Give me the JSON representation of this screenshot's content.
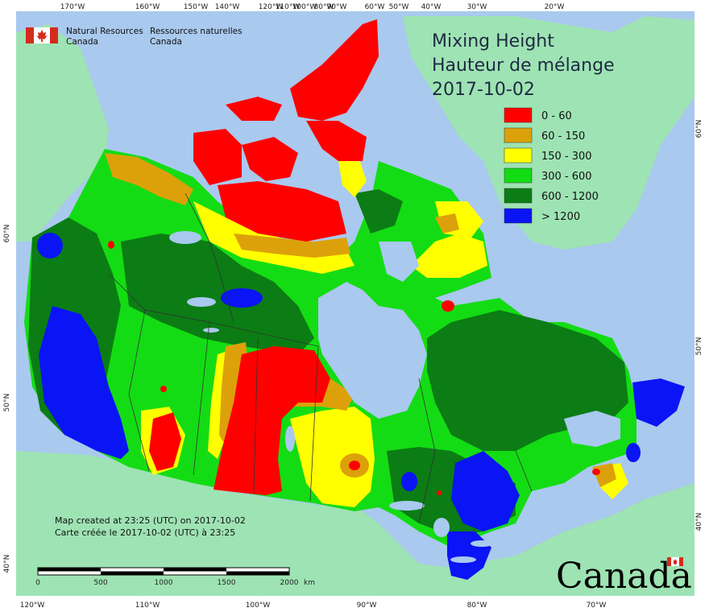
{
  "map": {
    "title_en": "Mixing Height",
    "title_fr": "Hauteur de mélange",
    "date": "2017-10-02",
    "agency_en_line1": "Natural Resources",
    "agency_en_line2": "Canada",
    "agency_fr_line1": "Ressources naturelles",
    "agency_fr_line2": "Canada",
    "credit_en": "Map created at 23:25 (UTC) on 2017-10-02",
    "credit_fr": "Carte créée le 2017-10-02 (UTC) à 23:25",
    "wordmark": "Canada"
  },
  "legend": [
    {
      "label": "0 - 60",
      "color": "#ff0000"
    },
    {
      "label": "60 - 150",
      "color": "#dca10a"
    },
    {
      "label": "150 - 300",
      "color": "#ffff00"
    },
    {
      "label": "300 - 600",
      "color": "#14dc14"
    },
    {
      "label": "600 - 1200",
      "color": "#0b7d14"
    },
    {
      "label": "> 1200",
      "color": "#0a14f5"
    }
  ],
  "scale": {
    "ticks": [
      "0",
      "500",
      "1000",
      "1500",
      "2000"
    ],
    "unit": "km"
  },
  "top_lon_labels": [
    "170°W",
    "160°W",
    "150°W",
    "140°W",
    "120°W",
    "110°W",
    "100°W",
    "90°W",
    "80°W",
    "60°W",
    "50°W",
    "40°W",
    "30°W",
    "20°W"
  ],
  "bottom_lon_labels": [
    "120°W",
    "110°W",
    "100°W",
    "90°W",
    "80°W",
    "70°W"
  ],
  "left_lat_labels": [
    "60°N",
    "50°N",
    "40°N"
  ],
  "right_lat_labels": [
    "60°N",
    "50°N",
    "40°N"
  ],
  "colors": {
    "ocean": "#a9c9ee",
    "land_other": "#9ee3b3",
    "border": "#333333",
    "lake": "#a9c9ee"
  }
}
